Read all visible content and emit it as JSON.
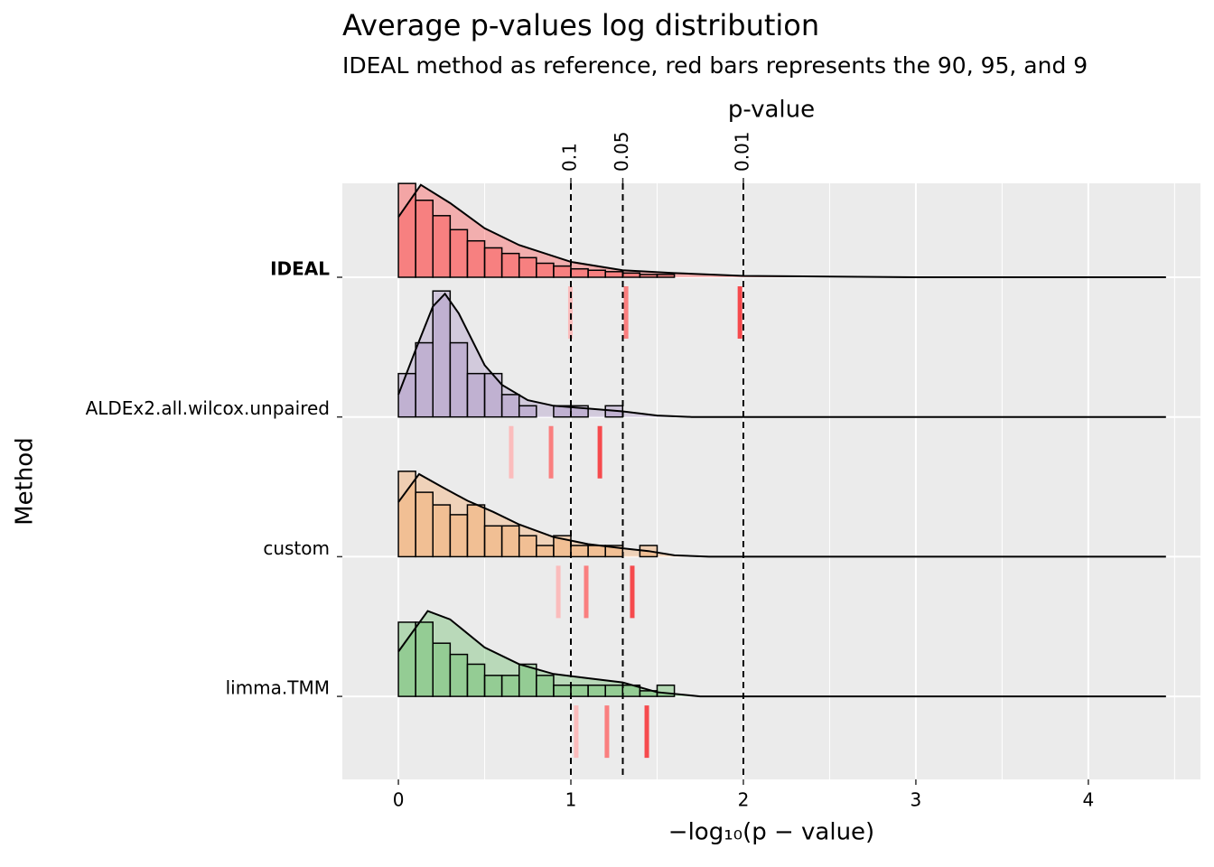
{
  "chart_data": {
    "type": "ridgeline",
    "title": "Average p-values log distribution",
    "subtitle": "IDEAL method as reference, red bars represents the 90, 95, and 9",
    "x_label": "−log₁₀(p − value)",
    "y_label": "Method",
    "x2_label": "p-value",
    "xlim": [
      -0.325,
      4.65
    ],
    "xticks": [
      0,
      1,
      2,
      3,
      4
    ],
    "x2ticks": [
      {
        "value": 1,
        "label": "0.1"
      },
      {
        "value": 1.301,
        "label": "0.05"
      },
      {
        "value": 2,
        "label": "0.01"
      }
    ],
    "grid": true,
    "quantile_colors": [
      "#fbbcbc",
      "#fa7f7f",
      "#f64a4d"
    ],
    "series": [
      {
        "name": "IDEAL",
        "color": "#ff3b3b",
        "label_color": "#e00000",
        "bins": [
          0,
          0.1,
          0.2,
          0.3,
          0.4,
          0.5,
          0.6,
          0.7,
          0.8,
          0.9,
          1.0,
          1.1,
          1.2,
          1.3,
          1.4,
          1.5,
          1.6
        ],
        "counts": [
          0.67,
          0.55,
          0.44,
          0.34,
          0.26,
          0.21,
          0.17,
          0.14,
          0.1,
          0.08,
          0.06,
          0.05,
          0.04,
          0.03,
          0.02,
          0.02
        ],
        "density_x": [
          0,
          0.13,
          0.3,
          0.5,
          0.7,
          1.0,
          1.3,
          1.6,
          2.0,
          2.5,
          3.0,
          4.45
        ],
        "density": [
          0.43,
          0.66,
          0.53,
          0.35,
          0.23,
          0.11,
          0.05,
          0.03,
          0.01,
          0.005,
          0,
          0
        ],
        "quantiles": [
          0.997,
          1.32,
          1.98
        ]
      },
      {
        "name": "ALDEx2.all.wilcox.unpaired",
        "color": "#a48bc0",
        "bins": [
          0,
          0.1,
          0.2,
          0.3,
          0.4,
          0.5,
          0.6,
          0.7,
          0.8,
          0.9,
          1.0,
          1.1,
          1.2,
          1.3,
          1.4,
          1.5,
          1.6
        ],
        "counts": [
          0.31,
          0.53,
          0.9,
          0.53,
          0.31,
          0.31,
          0.16,
          0.08,
          0,
          0.08,
          0.08,
          0,
          0.08,
          0,
          0,
          0
        ],
        "density_x": [
          0,
          0.1,
          0.2,
          0.27,
          0.35,
          0.5,
          0.6,
          0.75,
          0.9,
          1.1,
          1.3,
          1.5,
          1.7,
          4.45
        ],
        "density": [
          0.16,
          0.48,
          0.79,
          0.88,
          0.74,
          0.37,
          0.23,
          0.12,
          0.08,
          0.06,
          0.04,
          0.01,
          0,
          0
        ],
        "quantiles": [
          0.654,
          0.885,
          1.168
        ]
      },
      {
        "name": "custom",
        "color": "#f5a35c",
        "bins": [
          0,
          0.1,
          0.2,
          0.3,
          0.4,
          0.5,
          0.6,
          0.7,
          0.8,
          0.9,
          1.0,
          1.1,
          1.2,
          1.3,
          1.4,
          1.5,
          1.6
        ],
        "counts": [
          0.61,
          0.46,
          0.37,
          0.3,
          0.37,
          0.22,
          0.22,
          0.15,
          0.08,
          0.15,
          0.08,
          0.08,
          0.08,
          0,
          0.08,
          0
        ],
        "density_x": [
          0,
          0.12,
          0.25,
          0.4,
          0.55,
          0.7,
          0.9,
          1.1,
          1.3,
          1.45,
          1.6,
          1.8,
          4.45
        ],
        "density": [
          0.39,
          0.59,
          0.5,
          0.4,
          0.32,
          0.23,
          0.14,
          0.09,
          0.06,
          0.04,
          0.01,
          0,
          0
        ],
        "quantiles": [
          0.927,
          1.089,
          1.356
        ]
      },
      {
        "name": "limma.TMM",
        "color": "#5cb85c",
        "bins": [
          0,
          0.1,
          0.2,
          0.3,
          0.4,
          0.5,
          0.6,
          0.7,
          0.8,
          0.9,
          1.0,
          1.1,
          1.2,
          1.3,
          1.4,
          1.5,
          1.6
        ],
        "counts": [
          0.53,
          0.53,
          0.38,
          0.3,
          0.23,
          0.15,
          0.15,
          0.23,
          0.15,
          0.08,
          0.08,
          0.08,
          0.08,
          0.08,
          0.04,
          0.08
        ],
        "density_x": [
          0,
          0.17,
          0.3,
          0.5,
          0.7,
          0.9,
          1.1,
          1.3,
          1.5,
          1.75,
          4.45
        ],
        "density": [
          0.32,
          0.61,
          0.55,
          0.35,
          0.23,
          0.16,
          0.13,
          0.1,
          0.03,
          0,
          0
        ],
        "quantiles": [
          1.031,
          1.209,
          1.44
        ]
      }
    ]
  }
}
